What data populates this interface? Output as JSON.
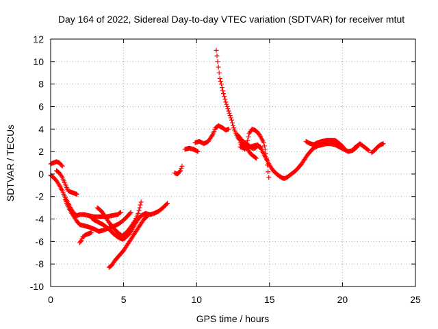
{
  "chart_data": {
    "type": "scatter",
    "title": "Day 164 of 2022, Sidereal Day-to-day VTEC variation (SDTVAR) for receiver mtut",
    "xlabel": "GPS time / hours",
    "ylabel": "SDTVAR / TECUs",
    "xlim": [
      0,
      25
    ],
    "ylim": [
      -10,
      12
    ],
    "xticks": [
      0,
      5,
      10,
      15,
      20,
      25
    ],
    "yticks": [
      -10,
      -8,
      -6,
      -4,
      -2,
      0,
      2,
      4,
      6,
      8,
      10,
      12
    ],
    "grid": true,
    "marker": "plus",
    "color": "#ff0000",
    "tracks": [
      [
        [
          0.0,
          0.9
        ],
        [
          0.2,
          1.0
        ],
        [
          0.4,
          1.1
        ],
        [
          0.6,
          1.0
        ],
        [
          0.8,
          0.7
        ]
      ],
      [
        [
          0.0,
          -0.1
        ],
        [
          0.2,
          -0.3
        ],
        [
          0.4,
          -0.6
        ],
        [
          0.6,
          -1.0
        ],
        [
          0.8,
          -1.5
        ],
        [
          1.0,
          -2.1
        ],
        [
          1.2,
          -2.6
        ],
        [
          1.4,
          -3.1
        ],
        [
          1.6,
          -3.5
        ],
        [
          1.8,
          -3.7
        ],
        [
          2.0,
          -3.6
        ],
        [
          2.3,
          -3.6
        ],
        [
          2.6,
          -3.7
        ],
        [
          3.0,
          -3.8
        ],
        [
          3.4,
          -3.8
        ],
        [
          3.8,
          -3.8
        ],
        [
          4.2,
          -3.7
        ],
        [
          4.6,
          -3.6
        ],
        [
          4.8,
          -3.4
        ]
      ],
      [
        [
          0.4,
          0.3
        ],
        [
          0.6,
          0.1
        ],
        [
          0.8,
          -0.3
        ],
        [
          1.0,
          -0.9
        ],
        [
          1.2,
          -1.5
        ],
        [
          1.4,
          -1.6
        ],
        [
          1.6,
          -1.7
        ],
        [
          1.8,
          -1.8
        ]
      ],
      [
        [
          1.0,
          -2.3
        ],
        [
          1.2,
          -2.9
        ],
        [
          1.4,
          -3.4
        ],
        [
          1.6,
          -3.8
        ],
        [
          1.8,
          -4.2
        ],
        [
          2.0,
          -4.5
        ],
        [
          2.3,
          -4.6
        ],
        [
          2.6,
          -4.7
        ],
        [
          3.0,
          -4.9
        ],
        [
          3.3,
          -5.1
        ],
        [
          3.6,
          -5.0
        ],
        [
          4.0,
          -4.8
        ],
        [
          4.4,
          -4.6
        ],
        [
          4.7,
          -4.4
        ],
        [
          5.0,
          -4.1
        ],
        [
          5.3,
          -3.7
        ],
        [
          5.5,
          -3.4
        ]
      ],
      [
        [
          2.0,
          -6.1
        ],
        [
          2.1,
          -5.9
        ],
        [
          2.2,
          -5.6
        ],
        [
          2.4,
          -5.4
        ],
        [
          2.6,
          -5.3
        ],
        [
          2.8,
          -5.2
        ]
      ],
      [
        [
          2.8,
          -3.9
        ],
        [
          3.0,
          -4.1
        ],
        [
          3.3,
          -4.3
        ],
        [
          3.6,
          -4.5
        ],
        [
          4.0,
          -4.9
        ],
        [
          4.3,
          -5.3
        ],
        [
          4.6,
          -5.6
        ],
        [
          4.9,
          -5.8
        ],
        [
          5.1,
          -5.7
        ],
        [
          5.4,
          -5.3
        ],
        [
          5.6,
          -4.9
        ],
        [
          5.8,
          -4.4
        ],
        [
          6.0,
          -4.0
        ],
        [
          6.2,
          -3.7
        ],
        [
          6.5,
          -3.5
        ],
        [
          6.8,
          -3.6
        ],
        [
          7.1,
          -3.5
        ],
        [
          7.4,
          -3.3
        ],
        [
          7.7,
          -3.0
        ],
        [
          8.0,
          -2.6
        ]
      ],
      [
        [
          3.2,
          -3.0
        ],
        [
          3.4,
          -3.2
        ],
        [
          3.6,
          -3.5
        ],
        [
          3.8,
          -3.9
        ],
        [
          4.0,
          -4.3
        ],
        [
          4.3,
          -4.8
        ],
        [
          4.6,
          -5.2
        ],
        [
          4.9,
          -5.5
        ],
        [
          5.2,
          -5.2
        ],
        [
          5.5,
          -4.7
        ],
        [
          5.8,
          -4.1
        ],
        [
          6.0,
          -3.5
        ],
        [
          6.1,
          -3.0
        ],
        [
          6.2,
          -2.5
        ]
      ],
      [
        [
          4.0,
          -8.3
        ],
        [
          4.2,
          -8.1
        ],
        [
          4.4,
          -7.7
        ],
        [
          4.6,
          -7.4
        ],
        [
          4.8,
          -7.1
        ],
        [
          5.0,
          -6.8
        ],
        [
          5.2,
          -6.4
        ],
        [
          5.4,
          -6.0
        ],
        [
          5.6,
          -5.6
        ],
        [
          5.8,
          -5.2
        ],
        [
          6.0,
          -4.8
        ],
        [
          6.2,
          -4.4
        ],
        [
          6.4,
          -4.0
        ],
        [
          6.6,
          -3.8
        ]
      ],
      [
        [
          8.5,
          0.1
        ],
        [
          8.7,
          0.0
        ],
        [
          8.9,
          0.3
        ],
        [
          9.0,
          0.7
        ]
      ],
      [
        [
          9.2,
          2.2
        ],
        [
          9.5,
          2.3
        ],
        [
          9.8,
          2.2
        ],
        [
          10.1,
          2.0
        ]
      ],
      [
        [
          9.9,
          2.8
        ],
        [
          10.2,
          2.9
        ],
        [
          10.5,
          2.7
        ],
        [
          10.8,
          2.9
        ],
        [
          11.1,
          3.5
        ],
        [
          11.3,
          4.1
        ],
        [
          11.5,
          4.3
        ],
        [
          11.8,
          4.1
        ],
        [
          12.0,
          3.9
        ],
        [
          12.2,
          4.0
        ]
      ],
      [
        [
          11.35,
          11.0
        ],
        [
          11.4,
          10.5
        ],
        [
          11.45,
          10.0
        ],
        [
          11.5,
          9.5
        ],
        [
          11.55,
          9.0
        ],
        [
          11.6,
          8.5
        ],
        [
          11.7,
          8.0
        ],
        [
          11.8,
          7.4
        ],
        [
          11.9,
          6.9
        ],
        [
          12.0,
          6.4
        ],
        [
          12.1,
          6.0
        ],
        [
          12.2,
          5.6
        ],
        [
          12.3,
          5.2
        ],
        [
          12.4,
          4.8
        ],
        [
          12.5,
          4.3
        ],
        [
          12.6,
          3.9
        ],
        [
          12.7,
          3.6
        ],
        [
          12.8,
          3.3
        ],
        [
          12.9,
          3.1
        ],
        [
          13.0,
          3.0
        ],
        [
          13.2,
          2.9
        ],
        [
          13.4,
          2.7
        ],
        [
          13.6,
          2.5
        ],
        [
          13.8,
          2.3
        ],
        [
          14.0,
          2.3
        ],
        [
          14.2,
          2.5
        ],
        [
          14.4,
          2.4
        ]
      ],
      [
        [
          12.8,
          3.5
        ],
        [
          13.0,
          3.2
        ],
        [
          13.1,
          2.9
        ],
        [
          13.2,
          2.6
        ],
        [
          13.3,
          2.4
        ],
        [
          13.5,
          2.2
        ],
        [
          13.7,
          1.8
        ],
        [
          13.9,
          1.6
        ],
        [
          14.1,
          1.4
        ]
      ],
      [
        [
          13.0,
          2.8
        ],
        [
          13.1,
          2.5
        ],
        [
          13.3,
          2.2
        ],
        [
          13.4,
          2.5
        ],
        [
          13.5,
          3.0
        ],
        [
          13.6,
          3.6
        ],
        [
          13.8,
          4.0
        ],
        [
          14.0,
          3.9
        ],
        [
          14.2,
          3.7
        ],
        [
          14.4,
          3.3
        ],
        [
          14.6,
          2.8
        ],
        [
          14.7,
          2.2
        ],
        [
          14.8,
          1.4
        ],
        [
          14.85,
          0.8
        ],
        [
          14.9,
          0.2
        ],
        [
          14.95,
          -0.3
        ]
      ],
      [
        [
          13.0,
          2.4
        ],
        [
          13.3,
          2.3
        ],
        [
          13.6,
          2.4
        ],
        [
          13.9,
          2.5
        ],
        [
          14.2,
          2.6
        ],
        [
          14.4,
          2.3
        ],
        [
          14.6,
          1.8
        ],
        [
          14.8,
          1.3
        ],
        [
          15.0,
          0.8
        ],
        [
          15.2,
          0.4
        ],
        [
          15.4,
          0.1
        ],
        [
          15.6,
          -0.1
        ],
        [
          15.8,
          -0.3
        ],
        [
          16.0,
          -0.4
        ],
        [
          16.2,
          -0.3
        ],
        [
          16.4,
          -0.1
        ],
        [
          16.6,
          0.1
        ],
        [
          16.8,
          0.3
        ],
        [
          17.0,
          0.6
        ],
        [
          17.2,
          0.9
        ],
        [
          17.4,
          1.3
        ],
        [
          17.6,
          1.7
        ],
        [
          17.8,
          2.0
        ],
        [
          18.0,
          2.3
        ],
        [
          18.3,
          2.5
        ],
        [
          18.6,
          2.6
        ],
        [
          18.9,
          2.7
        ],
        [
          19.2,
          2.7
        ],
        [
          19.5,
          2.6
        ],
        [
          19.8,
          2.4
        ],
        [
          20.1,
          2.2
        ],
        [
          20.4,
          2.0
        ],
        [
          20.7,
          2.1
        ],
        [
          21.0,
          2.4
        ]
      ],
      [
        [
          17.5,
          2.9
        ],
        [
          17.8,
          2.7
        ],
        [
          18.1,
          2.6
        ],
        [
          18.4,
          2.7
        ],
        [
          18.7,
          2.8
        ],
        [
          19.0,
          3.0
        ],
        [
          19.3,
          3.0
        ],
        [
          19.6,
          2.8
        ],
        [
          19.9,
          2.6
        ],
        [
          20.1,
          2.3
        ]
      ],
      [
        [
          18.0,
          2.6
        ],
        [
          18.3,
          2.8
        ],
        [
          18.6,
          2.9
        ],
        [
          18.9,
          3.0
        ],
        [
          19.2,
          3.0
        ],
        [
          19.5,
          3.0
        ],
        [
          19.8,
          2.7
        ]
      ],
      [
        [
          20.8,
          2.3
        ],
        [
          21.0,
          2.5
        ],
        [
          21.2,
          2.7
        ],
        [
          21.4,
          2.5
        ],
        [
          21.6,
          2.3
        ],
        [
          21.8,
          2.1
        ]
      ],
      [
        [
          22.0,
          1.9
        ],
        [
          22.2,
          2.1
        ],
        [
          22.4,
          2.4
        ],
        [
          22.6,
          2.6
        ],
        [
          22.8,
          2.7
        ]
      ]
    ]
  }
}
